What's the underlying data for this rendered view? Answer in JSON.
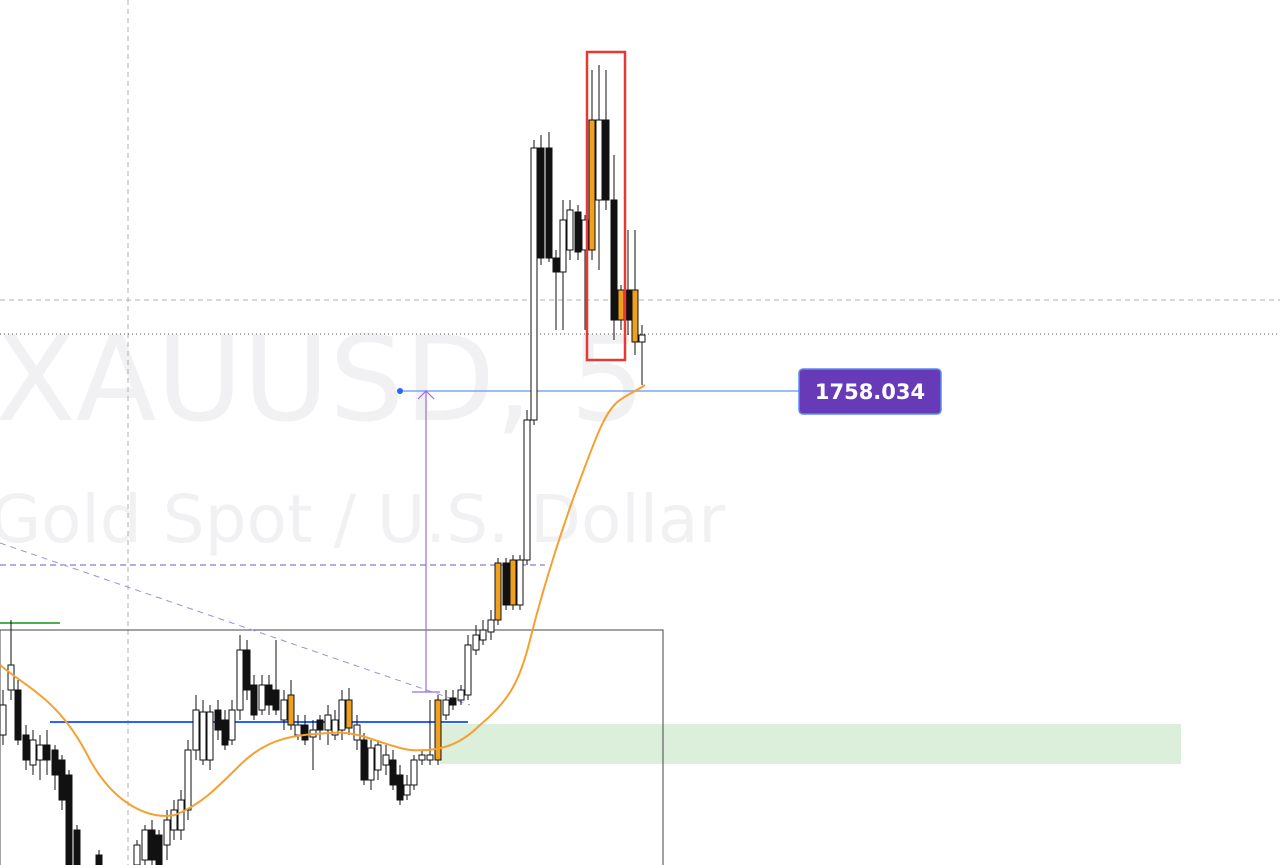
{
  "watermark": {
    "symbol": "XAUUSD, 5",
    "description": "Gold Spot / U.S. Dollar"
  },
  "price_label": "1758.034"
}
